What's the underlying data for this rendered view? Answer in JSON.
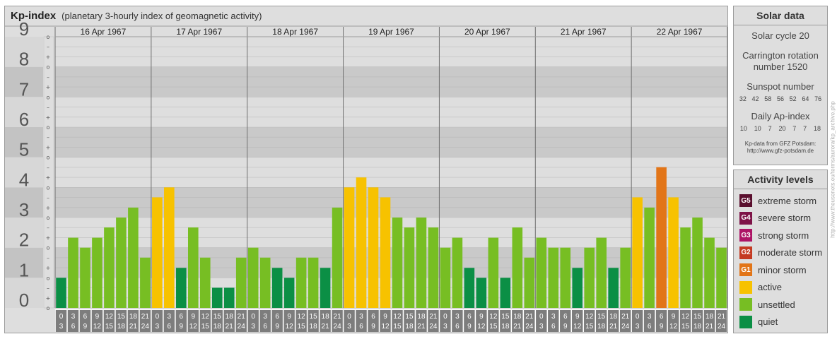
{
  "title": {
    "main": "Kp-index",
    "sub": "(planetary 3-hourly index of geomagnetic activity)"
  },
  "chart_data": {
    "type": "bar",
    "ylim": [
      0,
      9
    ],
    "y_ticks": [
      "0",
      "1",
      "2",
      "3",
      "4",
      "5",
      "6",
      "7",
      "8",
      "9"
    ],
    "sub_ticks": [
      "o",
      "+",
      "–"
    ],
    "days": [
      "16 Apr 1967",
      "17 Apr 1967",
      "18 Apr 1967",
      "19 Apr 1967",
      "20 Apr 1967",
      "21 Apr 1967",
      "22 Apr 1967"
    ],
    "interval_starts": [
      "0",
      "3",
      "6",
      "9",
      "12",
      "15",
      "18",
      "21"
    ],
    "interval_ends": [
      "3",
      "6",
      "9",
      "12",
      "15",
      "18",
      "21",
      "24"
    ],
    "values": [
      [
        1.0,
        2.33,
        2.0,
        2.33,
        2.67,
        3.0,
        3.33,
        1.67
      ],
      [
        3.67,
        4.0,
        1.33,
        2.67,
        1.67,
        0.67,
        0.67,
        1.67
      ],
      [
        2.0,
        1.67,
        1.33,
        1.0,
        1.67,
        1.67,
        1.33,
        3.33
      ],
      [
        4.0,
        4.33,
        4.0,
        3.67,
        3.0,
        2.67,
        3.0,
        2.67
      ],
      [
        2.0,
        2.33,
        1.33,
        1.0,
        2.33,
        1.0,
        2.67,
        1.67
      ],
      [
        2.33,
        2.0,
        2.0,
        1.33,
        2.0,
        2.33,
        1.33,
        2.0
      ],
      [
        3.67,
        3.33,
        4.67,
        3.67,
        2.67,
        3.0,
        2.33,
        2.0
      ]
    ],
    "level_colors": {
      "quiet": "#0b8f45",
      "unsettled": "#77be23",
      "active": "#f7c200",
      "G1": "#e27518"
    },
    "grid": true
  },
  "solar": {
    "title": "Solar data",
    "cycle": "Solar cycle 20",
    "carrington_line1": "Carrington rotation",
    "carrington_line2": "number 1520",
    "sunspot_title": "Sunspot number",
    "sunspots": [
      "32",
      "42",
      "58",
      "56",
      "52",
      "64",
      "76"
    ],
    "ap_title": "Daily Ap-index",
    "ap": [
      "10",
      "10",
      "7",
      "20",
      "7",
      "7",
      "18"
    ],
    "credit_line1": "Kp-data from GFZ Potsdam:",
    "credit_line2": "http://www.gfz-potsdam.de"
  },
  "activity": {
    "title": "Activity levels",
    "items": [
      {
        "code": "G5",
        "label": "extreme storm",
        "color": "#5a0f2e"
      },
      {
        "code": "G4",
        "label": "severe storm",
        "color": "#7d1347"
      },
      {
        "code": "G3",
        "label": "strong storm",
        "color": "#ad1466"
      },
      {
        "code": "G2",
        "label": "moderate storm",
        "color": "#c43a22"
      },
      {
        "code": "G1",
        "label": "minor storm",
        "color": "#e27518"
      },
      {
        "code": "",
        "label": "active",
        "color": "#f7c200"
      },
      {
        "code": "",
        "label": "unsettled",
        "color": "#77be23"
      },
      {
        "code": "",
        "label": "quiet",
        "color": "#0b8f45"
      }
    ]
  },
  "side_credit": "http://www.theusenets.eu/terms/aurora/kp_archive.php"
}
